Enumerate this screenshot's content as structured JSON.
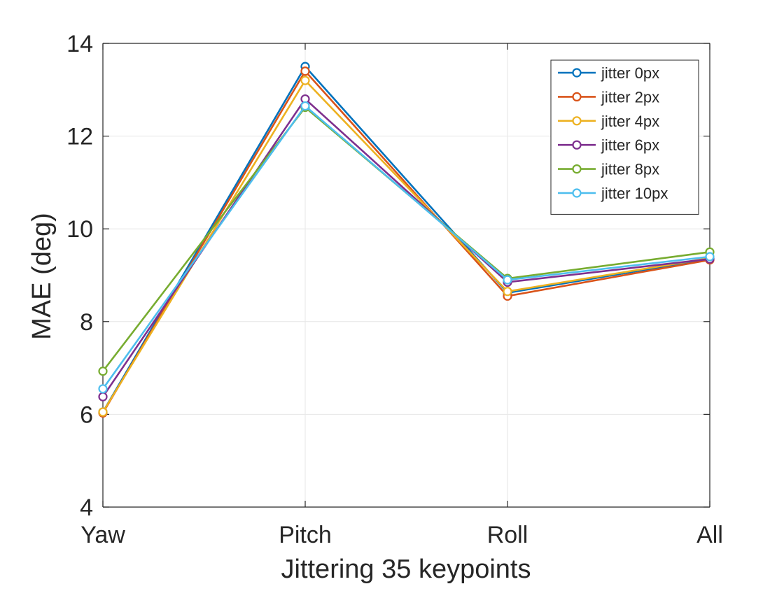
{
  "chart_data": {
    "type": "line",
    "title": "",
    "xlabel": "Jittering 35 keypoints",
    "ylabel": "MAE (deg)",
    "categories": [
      "Yaw",
      "Pitch",
      "Roll",
      "All"
    ],
    "ylim": [
      4,
      14
    ],
    "yticks": [
      "4",
      "6",
      "8",
      "10",
      "12",
      "14"
    ],
    "grid": true,
    "legend_position": "top-right",
    "marker": "circle",
    "series": [
      {
        "name": "jitter 0px",
        "color": "#0072BD",
        "values": [
          6.05,
          13.5,
          8.62,
          9.35
        ]
      },
      {
        "name": "jitter 2px",
        "color": "#D95319",
        "values": [
          6.03,
          13.4,
          8.55,
          9.33
        ]
      },
      {
        "name": "jitter 4px",
        "color": "#EDB120",
        "values": [
          6.05,
          13.2,
          8.65,
          9.37
        ]
      },
      {
        "name": "jitter 6px",
        "color": "#7E2F8E",
        "values": [
          6.38,
          12.8,
          8.85,
          9.35
        ]
      },
      {
        "name": "jitter 8px",
        "color": "#77AC30",
        "values": [
          6.93,
          12.62,
          8.93,
          9.5
        ]
      },
      {
        "name": "jitter 10px",
        "color": "#4DBEEE",
        "values": [
          6.55,
          12.65,
          8.9,
          9.4
        ]
      }
    ]
  }
}
